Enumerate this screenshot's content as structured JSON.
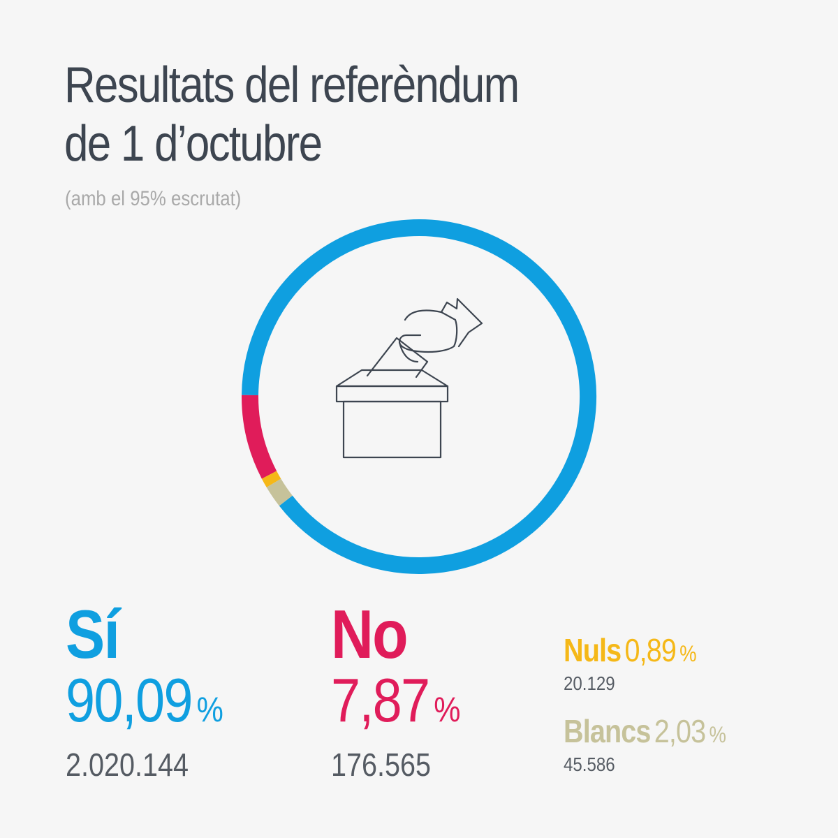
{
  "title_line1": "Resultats del referèndum",
  "title_line2": "de 1 d’octubre",
  "subtitle": "(amb el 95% escrutat)",
  "percent_sign": "%",
  "icon": "ballot-box-icon",
  "chart_data": {
    "type": "pie",
    "donut": true,
    "start_angle_deg": 142,
    "direction": "counterclockwise",
    "categories": [
      "Sí",
      "No",
      "Nuls",
      "Blancs"
    ],
    "values": [
      90.09,
      7.87,
      0.89,
      2.03
    ],
    "colors": [
      "#0f9fe0",
      "#e01c5a",
      "#f5b818",
      "#c6c29a"
    ]
  },
  "results": {
    "si": {
      "label": "Sí",
      "percent": "90,09",
      "count": "2.020.144",
      "color": "#0f9fe0"
    },
    "no": {
      "label": "No",
      "percent": "7,87",
      "count": "176.565",
      "color": "#e01c5a"
    },
    "nuls": {
      "label": "Nuls",
      "percent": "0,89",
      "count": "20.129",
      "color": "#f5b818"
    },
    "blancs": {
      "label": "Blancs",
      "percent": "2,03",
      "count": "45.586",
      "color": "#c6c29a"
    }
  }
}
